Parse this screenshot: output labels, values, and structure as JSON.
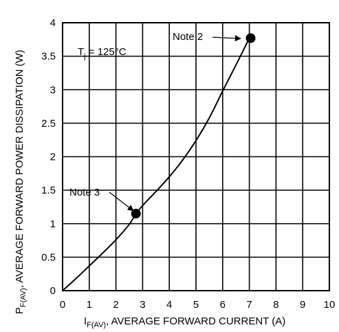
{
  "chart_data": {
    "type": "line",
    "title": "",
    "xlabel": {
      "main": "I",
      "sub": "F(AV)",
      "rest": ", AVERAGE FORWARD CURRENT (A)"
    },
    "ylabel": {
      "main": "P",
      "sub": "F(AV)",
      "rest": ", AVERAGE FORWARD POWER DISSIPATION (W)"
    },
    "xlim": [
      0,
      10
    ],
    "ylim": [
      0,
      4
    ],
    "x_ticks": [
      0,
      1,
      2,
      3,
      4,
      5,
      6,
      7,
      8,
      9,
      10
    ],
    "x_tick_labels": [
      "0",
      "1",
      "2",
      "3",
      "4",
      "5",
      "6",
      "7",
      "8",
      "9",
      "10"
    ],
    "y_ticks": [
      0,
      0.5,
      1,
      1.5,
      2,
      2.5,
      3,
      3.5,
      4
    ],
    "y_tick_labels": [
      "0",
      "0.5",
      "1",
      "1.5",
      "2",
      "2.5",
      "3",
      "3.5",
      "4"
    ],
    "grid": true,
    "series": [
      {
        "x": [
          0,
          0.5,
          1,
          1.5,
          2,
          2.5,
          2.75,
          3,
          3.5,
          4,
          4.5,
          5,
          5.5,
          6,
          6.5,
          7
        ],
        "y": [
          0,
          0.18,
          0.37,
          0.56,
          0.76,
          0.99,
          1.15,
          1.27,
          1.48,
          1.7,
          1.95,
          2.24,
          2.58,
          2.98,
          3.37,
          3.77
        ]
      }
    ],
    "markers": [
      {
        "x": 2.75,
        "y": 1.15
      },
      {
        "x": 7.05,
        "y": 3.77
      }
    ],
    "annotations": [
      {
        "text": "Note 2",
        "target": 1
      },
      {
        "text": "Note 3",
        "target": 0
      }
    ],
    "condition": {
      "main": "T",
      "sub": "j",
      "rest": " = 125°C"
    }
  },
  "colors": {
    "line": "#000000",
    "grid": "#000000",
    "background": "#ffffff"
  }
}
